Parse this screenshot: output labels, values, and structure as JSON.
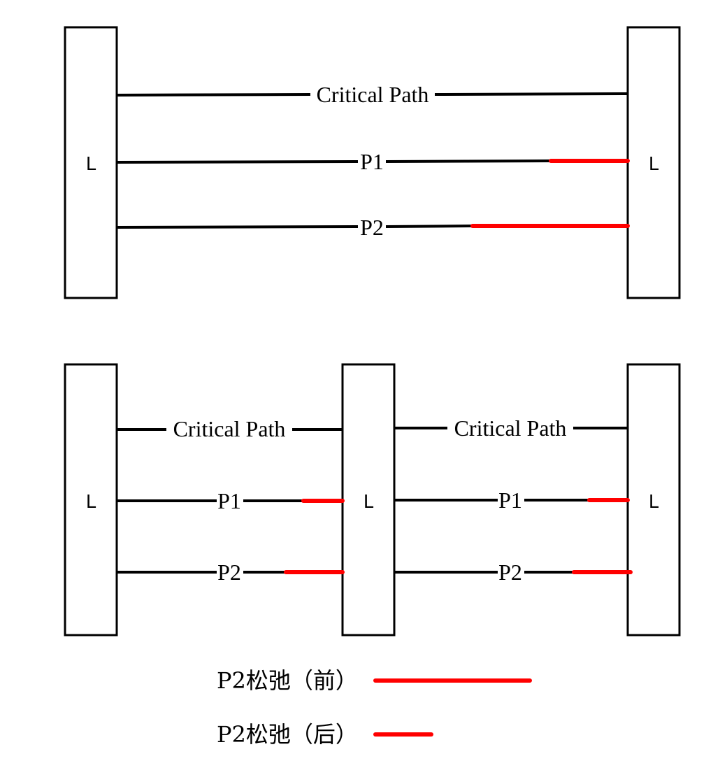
{
  "labels": {
    "latch": "L",
    "critical_path": "Critical Path",
    "p1": "P1",
    "p2": "P2"
  },
  "legend": {
    "before": "P2松弛（前）",
    "after": "P2松弛（后）"
  },
  "colors": {
    "slack": "#ff0000",
    "wire": "#000000"
  }
}
